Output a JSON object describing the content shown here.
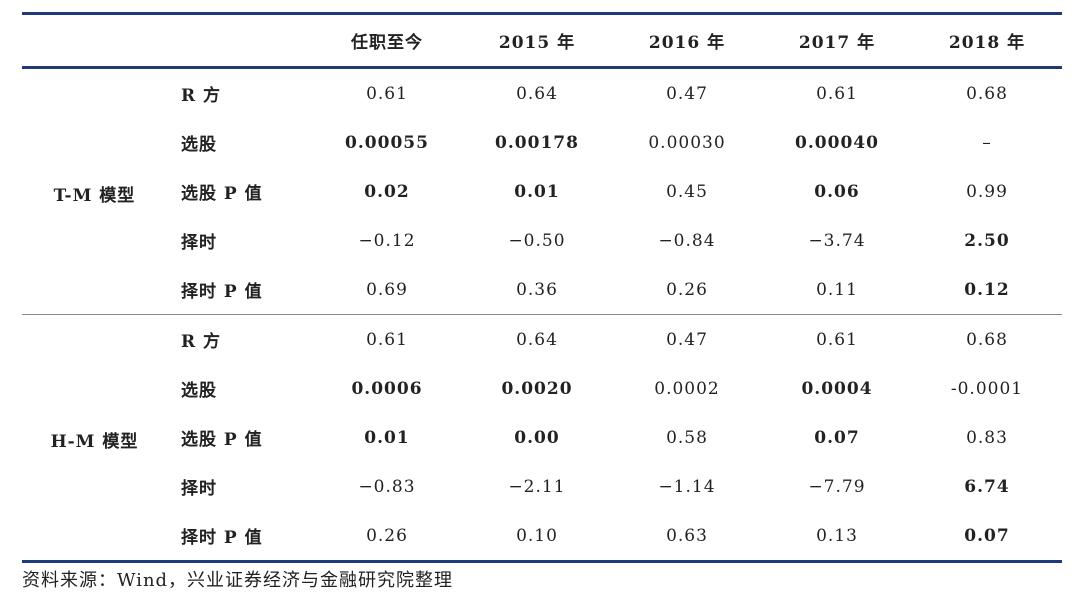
{
  "columns": [
    "任职至今",
    "2015 年",
    "2016 年",
    "2017 年",
    "2018 年"
  ],
  "sections": [
    {
      "model": "T-M 模型",
      "rows": [
        {
          "metric": "R 方",
          "values": [
            "0.61",
            "0.64",
            "0.47",
            "0.61",
            "0.68"
          ],
          "bold": [
            false,
            false,
            false,
            false,
            false
          ]
        },
        {
          "metric": "选股",
          "values": [
            "0.00055",
            "0.00178",
            "0.00030",
            "0.00040",
            "–"
          ],
          "bold": [
            true,
            true,
            false,
            true,
            false
          ]
        },
        {
          "metric": "选股 P 值",
          "values": [
            "0.02",
            "0.01",
            "0.45",
            "0.06",
            "0.99"
          ],
          "bold": [
            true,
            true,
            false,
            true,
            false
          ]
        },
        {
          "metric": "择时",
          "values": [
            "−0.12",
            "−0.50",
            "−0.84",
            "−3.74",
            "2.50"
          ],
          "bold": [
            false,
            false,
            false,
            false,
            true
          ]
        },
        {
          "metric": "择时 P 值",
          "values": [
            "0.69",
            "0.36",
            "0.26",
            "0.11",
            "0.12"
          ],
          "bold": [
            false,
            false,
            false,
            false,
            true
          ]
        }
      ]
    },
    {
      "model": "H-M 模型",
      "rows": [
        {
          "metric": "R 方",
          "values": [
            "0.61",
            "0.64",
            "0.47",
            "0.61",
            "0.68"
          ],
          "bold": [
            false,
            false,
            false,
            false,
            false
          ]
        },
        {
          "metric": "选股",
          "values": [
            "0.0006",
            "0.0020",
            "0.0002",
            "0.0004",
            "-0.0001"
          ],
          "bold": [
            true,
            true,
            false,
            true,
            false
          ]
        },
        {
          "metric": "选股 P 值",
          "values": [
            "0.01",
            "0.00",
            "0.58",
            "0.07",
            "0.83"
          ],
          "bold": [
            true,
            true,
            false,
            true,
            false
          ]
        },
        {
          "metric": "择时",
          "values": [
            "−0.83",
            "−2.11",
            "−1.14",
            "−7.79",
            "6.74"
          ],
          "bold": [
            false,
            false,
            false,
            false,
            true
          ]
        },
        {
          "metric": "择时 P 值",
          "values": [
            "0.26",
            "0.10",
            "0.63",
            "0.13",
            "0.07"
          ],
          "bold": [
            false,
            false,
            false,
            false,
            true
          ]
        }
      ]
    }
  ],
  "source": "资料来源：Wind，兴业证券经济与金融研究院整理",
  "colors": {
    "rule": "#1f3a7a",
    "divider": "#8a8a8a",
    "text": "#222222"
  }
}
